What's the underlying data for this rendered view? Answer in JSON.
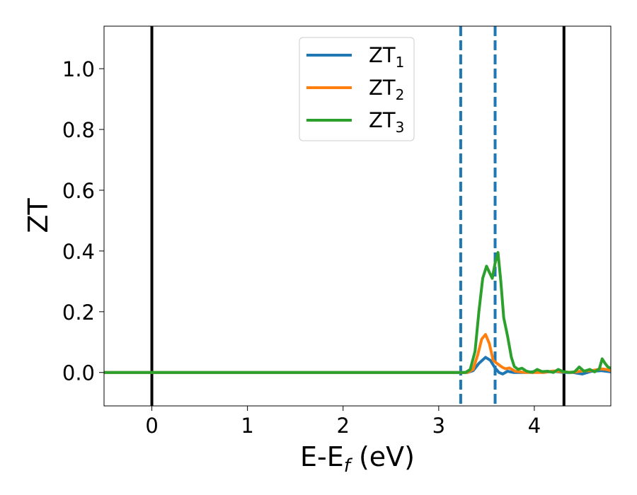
{
  "chart_data": {
    "type": "line",
    "xlabel": "E-E",
    "xlabel_subscript": "f",
    "xlabel_unit": " (eV)",
    "ylabel": "ZT",
    "xlim": [
      -0.5,
      4.8
    ],
    "ylim": [
      -0.11,
      1.14
    ],
    "xticks": [
      0,
      1,
      2,
      3,
      4
    ],
    "xtick_labels": [
      "0",
      "1",
      "2",
      "3",
      "4"
    ],
    "yticks": [
      0.0,
      0.2,
      0.4,
      0.6,
      0.8,
      1.0
    ],
    "ytick_labels": [
      "0.0",
      "0.2",
      "0.4",
      "0.6",
      "0.8",
      "1.0"
    ],
    "grid": false,
    "legend_position": "upper-center",
    "vertical_lines": [
      {
        "x": 0.0,
        "style": "solid",
        "color": "#000000"
      },
      {
        "x": 4.31,
        "style": "solid",
        "color": "#000000"
      },
      {
        "x": 3.23,
        "style": "dashed",
        "color": "#1f77b4"
      },
      {
        "x": 3.59,
        "style": "dashed",
        "color": "#1f77b4"
      }
    ],
    "series": [
      {
        "name": "ZT",
        "subscript": "1",
        "color": "#1f77b4",
        "points": [
          [
            -0.5,
            0
          ],
          [
            3.3,
            0
          ],
          [
            3.36,
            0.006
          ],
          [
            3.42,
            0.03
          ],
          [
            3.49,
            0.05
          ],
          [
            3.54,
            0.04
          ],
          [
            3.59,
            0.015
          ],
          [
            3.63,
            0.0
          ],
          [
            3.67,
            -0.005
          ],
          [
            3.72,
            0.004
          ],
          [
            3.78,
            0.0
          ],
          [
            3.9,
            0.0
          ],
          [
            4.0,
            0.003
          ],
          [
            4.1,
            0.0
          ],
          [
            4.2,
            0.004
          ],
          [
            4.3,
            0.0
          ],
          [
            4.4,
            0.0
          ],
          [
            4.5,
            -0.005
          ],
          [
            4.6,
            0.004
          ],
          [
            4.7,
            0.006
          ],
          [
            4.8,
            0.002
          ]
        ]
      },
      {
        "name": "ZT",
        "subscript": "2",
        "color": "#ff7f0e",
        "points": [
          [
            -0.5,
            0
          ],
          [
            3.3,
            0
          ],
          [
            3.36,
            0.01
          ],
          [
            3.41,
            0.06
          ],
          [
            3.45,
            0.11
          ],
          [
            3.49,
            0.125
          ],
          [
            3.53,
            0.095
          ],
          [
            3.57,
            0.04
          ],
          [
            3.61,
            0.03
          ],
          [
            3.66,
            0.018
          ],
          [
            3.7,
            0.012
          ],
          [
            3.74,
            0.015
          ],
          [
            3.8,
            0.004
          ],
          [
            3.9,
            0.0
          ],
          [
            4.0,
            0.0
          ],
          [
            4.1,
            0.0
          ],
          [
            4.2,
            0.005
          ],
          [
            4.3,
            0.002
          ],
          [
            4.4,
            0.0
          ],
          [
            4.5,
            0.005
          ],
          [
            4.6,
            0.006
          ],
          [
            4.7,
            0.012
          ],
          [
            4.75,
            0.01
          ],
          [
            4.8,
            0.006
          ]
        ]
      },
      {
        "name": "ZT",
        "subscript": "3",
        "color": "#2ca02c",
        "points": [
          [
            -0.5,
            0
          ],
          [
            3.28,
            0
          ],
          [
            3.33,
            0.01
          ],
          [
            3.38,
            0.07
          ],
          [
            3.42,
            0.2
          ],
          [
            3.46,
            0.31
          ],
          [
            3.5,
            0.35
          ],
          [
            3.53,
            0.33
          ],
          [
            3.56,
            0.31
          ],
          [
            3.59,
            0.36
          ],
          [
            3.62,
            0.395
          ],
          [
            3.65,
            0.3
          ],
          [
            3.68,
            0.18
          ],
          [
            3.72,
            0.12
          ],
          [
            3.76,
            0.05
          ],
          [
            3.79,
            0.02
          ],
          [
            3.83,
            0.01
          ],
          [
            3.87,
            0.014
          ],
          [
            3.92,
            0.004
          ],
          [
            3.98,
            0.0
          ],
          [
            4.03,
            0.01
          ],
          [
            4.08,
            0.003
          ],
          [
            4.14,
            0.004
          ],
          [
            4.2,
            0.0
          ],
          [
            4.25,
            0.01
          ],
          [
            4.3,
            0.003
          ],
          [
            4.36,
            0.0
          ],
          [
            4.42,
            0.002
          ],
          [
            4.47,
            0.018
          ],
          [
            4.52,
            0.004
          ],
          [
            4.58,
            0.01
          ],
          [
            4.63,
            0.002
          ],
          [
            4.68,
            0.012
          ],
          [
            4.71,
            0.045
          ],
          [
            4.74,
            0.03
          ],
          [
            4.77,
            0.018
          ],
          [
            4.8,
            0.014
          ]
        ]
      }
    ]
  }
}
